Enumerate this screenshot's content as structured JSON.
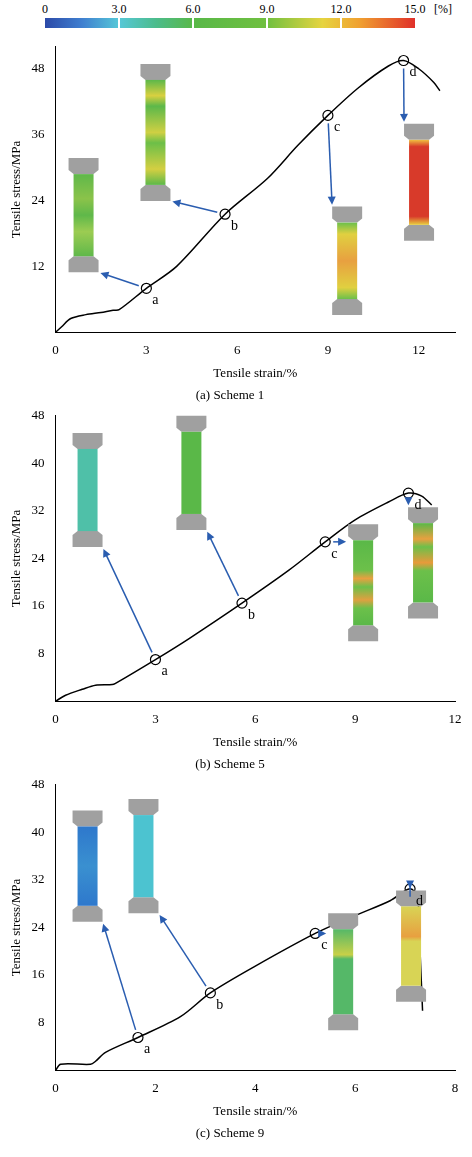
{
  "colorbar": {
    "range": [
      0,
      15
    ],
    "ticks": [
      0,
      {
        "value": 3,
        "label": "3.0"
      },
      {
        "value": 6,
        "label": "6.0"
      },
      {
        "value": 9,
        "label": "9.0"
      },
      {
        "value": 12,
        "label": "12.0"
      },
      {
        "value": 15,
        "label": "15.0"
      }
    ],
    "label": "[%]"
  },
  "chart_data": [
    {
      "type": "line",
      "title": "(a) Scheme 1",
      "x_label": "Tensile strain/%",
      "y_label": "Tensile stress/MPa",
      "color": "#000000",
      "x": [
        0,
        0.2,
        0.5,
        1.0,
        1.5,
        1.9,
        2.1,
        3,
        4,
        5.6,
        7,
        8,
        9,
        10,
        11,
        11.5,
        12,
        12.5,
        12.7
      ],
      "values": [
        0,
        1,
        2.5,
        3.2,
        3.6,
        4,
        4.1,
        8,
        12,
        21.5,
        28,
        34,
        39.5,
        44.5,
        48.5,
        49.5,
        48,
        45.5,
        44
      ],
      "xlim": [
        0,
        13.2
      ],
      "xticks": [
        0,
        3,
        6,
        9,
        12
      ],
      "ylim": [
        0,
        52
      ],
      "yticks": [
        12,
        24,
        36,
        48
      ],
      "grid": false,
      "points": [
        {
          "label": "a",
          "x": 3,
          "y": 8
        },
        {
          "label": "b",
          "x": 5.6,
          "y": 21.5
        },
        {
          "label": "c",
          "x": 9,
          "y": 39.5
        },
        {
          "label": "d",
          "x": 11.5,
          "y": 49.5
        }
      ]
    },
    {
      "type": "line",
      "title": "(b) Scheme 5",
      "x_label": "Tensile strain/%",
      "y_label": "Tensile stress/MPa",
      "color": "#000000",
      "x": [
        0,
        0.3,
        0.8,
        1.2,
        1.7,
        1.8,
        3,
        4,
        5.6,
        7,
        8.1,
        9,
        10,
        10.6,
        11,
        11.3
      ],
      "values": [
        0,
        1,
        2,
        2.7,
        2.8,
        3,
        7,
        10.5,
        16.5,
        22,
        26.8,
        30.5,
        33.5,
        35,
        34.5,
        33
      ],
      "xlim": [
        0,
        12
      ],
      "xticks": [
        0,
        3,
        6,
        9,
        12
      ],
      "ylim": [
        0,
        48
      ],
      "yticks": [
        8,
        16,
        24,
        32,
        40,
        48
      ],
      "grid": false,
      "points": [
        {
          "label": "a",
          "x": 3,
          "y": 7
        },
        {
          "label": "b",
          "x": 5.6,
          "y": 16.5
        },
        {
          "label": "c",
          "x": 8.1,
          "y": 26.8
        },
        {
          "label": "d",
          "x": 10.6,
          "y": 35
        }
      ]
    },
    {
      "type": "line",
      "title": "(c) Scheme 9",
      "x_label": "Tensile strain/%",
      "y_label": "Tensile stress/MPa",
      "color": "#000000",
      "x": [
        0,
        0.1,
        0.7,
        0.8,
        1,
        1.65,
        2.5,
        3.1,
        4,
        5.2,
        6,
        6.7,
        7.1,
        7.25,
        7.3,
        7.35
      ],
      "values": [
        0,
        1,
        1,
        1.5,
        3,
        5.5,
        9,
        13,
        17.5,
        23,
        26,
        28.5,
        30.5,
        29,
        20,
        10
      ],
      "xlim": [
        0,
        8
      ],
      "xticks": [
        0,
        2,
        4,
        6,
        8
      ],
      "ylim": [
        0,
        48
      ],
      "yticks": [
        8,
        16,
        24,
        32,
        40,
        48
      ],
      "grid": false,
      "points": [
        {
          "label": "a",
          "x": 1.65,
          "y": 5.5
        },
        {
          "label": "b",
          "x": 3.1,
          "y": 13
        },
        {
          "label": "c",
          "x": 5.2,
          "y": 23
        },
        {
          "label": "d",
          "x": 7.1,
          "y": 30.5
        }
      ]
    }
  ]
}
